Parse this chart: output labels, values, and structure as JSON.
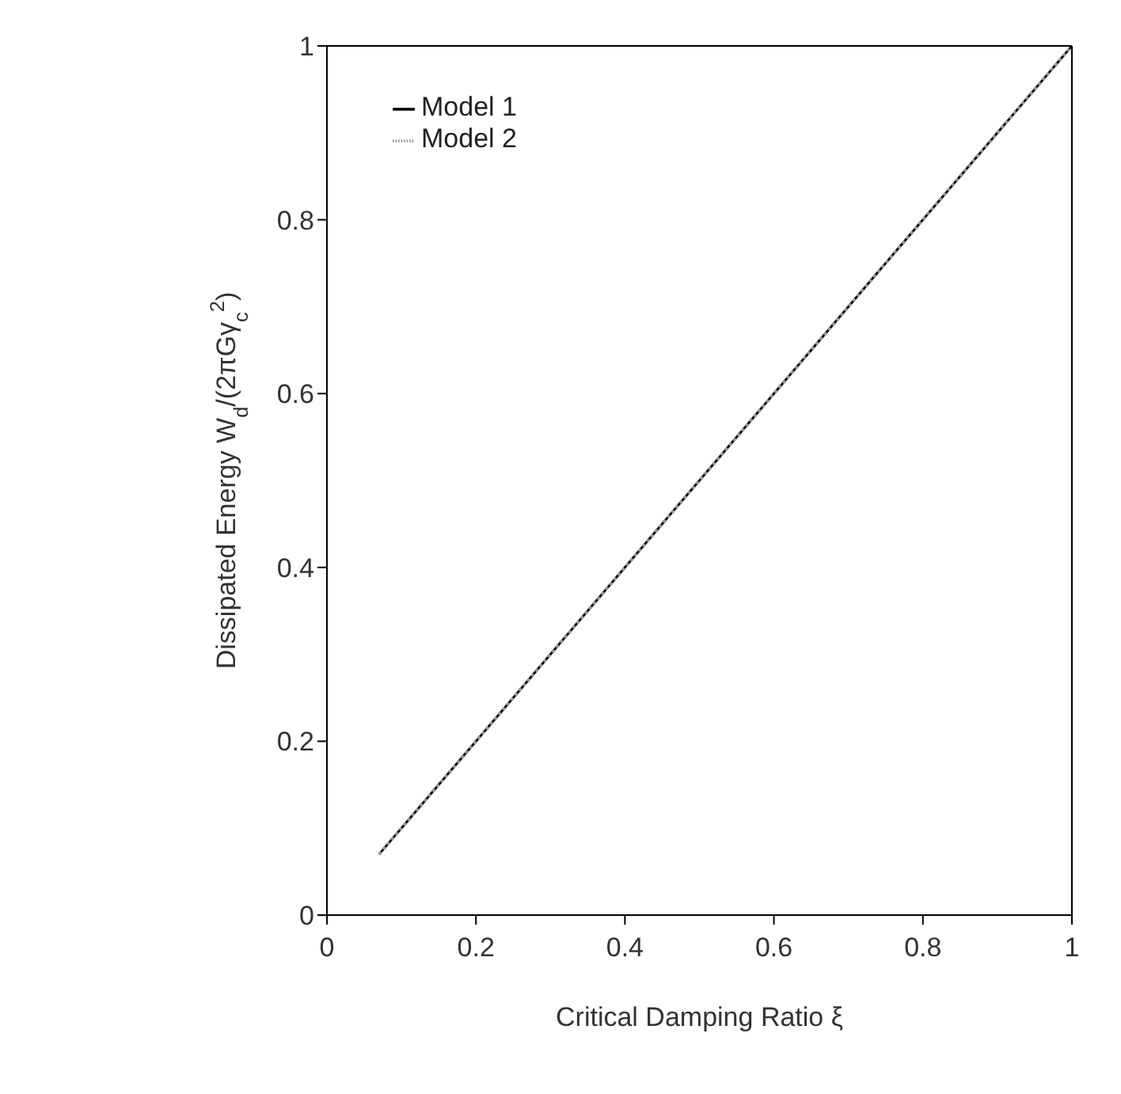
{
  "chart_data": {
    "type": "line",
    "xlabel": "Critical Damping Ratio ξ",
    "ylabel": "Dissipated Energy W$_{d}$/(2πGγ$_{c}$$^{2}$)",
    "x": [
      0.07,
      0.2,
      0.4,
      0.6,
      0.8,
      1
    ],
    "series": [
      {
        "name": "Model 1",
        "color": "#000000",
        "values": [
          0.07,
          0.2,
          0.4,
          0.6,
          0.8,
          1
        ],
        "line_style": "solid"
      },
      {
        "name": "Model 2",
        "color": "#999999",
        "values": [
          0.07,
          0.2,
          0.4,
          0.6,
          0.8,
          1
        ],
        "line_style": "dotted"
      }
    ],
    "xlim": [
      0,
      1
    ],
    "xticks": [
      0,
      0.2,
      0.4,
      0.6,
      0.8,
      1
    ],
    "ylim": [
      0,
      1
    ],
    "yticks": [
      0,
      0.2,
      0.4,
      0.6,
      0.8,
      1
    ],
    "grid": false,
    "legend": "top left",
    "marker": "none"
  }
}
